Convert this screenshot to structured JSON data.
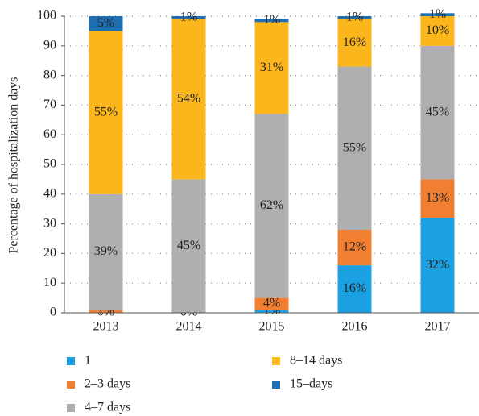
{
  "chart_data": {
    "type": "stacked_bar",
    "y_label": "Percentage of hospitalization days",
    "categories": [
      "2013",
      "2014",
      "2015",
      "2016",
      "2017"
    ],
    "series": [
      {
        "name": "1",
        "color": "#1ba1e2",
        "values": [
          0,
          0,
          1,
          16,
          32
        ],
        "value_labels": [
          "0%",
          "0%",
          "1%",
          "16%",
          "32%"
        ]
      },
      {
        "name": "2–3 days",
        "color": "#f07f32",
        "values": [
          1,
          0,
          4,
          12,
          13
        ],
        "value_labels": [
          "1%",
          "0%",
          "4%",
          "12%",
          "13%"
        ]
      },
      {
        "name": "4–7 days",
        "color": "#afafb1",
        "values": [
          39,
          45,
          62,
          55,
          45
        ],
        "value_labels": [
          "39%",
          "45%",
          "62%",
          "55%",
          "45%"
        ]
      },
      {
        "name": "8–14 days",
        "color": "#fbb61b",
        "values": [
          55,
          54,
          31,
          16,
          10
        ],
        "value_labels": [
          "55%",
          "54%",
          "31%",
          "16%",
          "10%"
        ]
      },
      {
        "name": "15–days",
        "color": "#1f6fb2",
        "values": [
          5,
          1,
          1,
          1,
          1
        ],
        "value_labels": [
          "5%",
          "1%",
          "1%",
          "1%",
          "1%"
        ]
      }
    ],
    "ylim": [
      0,
      100
    ],
    "yticks": [
      0,
      10,
      20,
      30,
      40,
      50,
      60,
      70,
      80,
      90,
      100
    ],
    "grid": true
  }
}
